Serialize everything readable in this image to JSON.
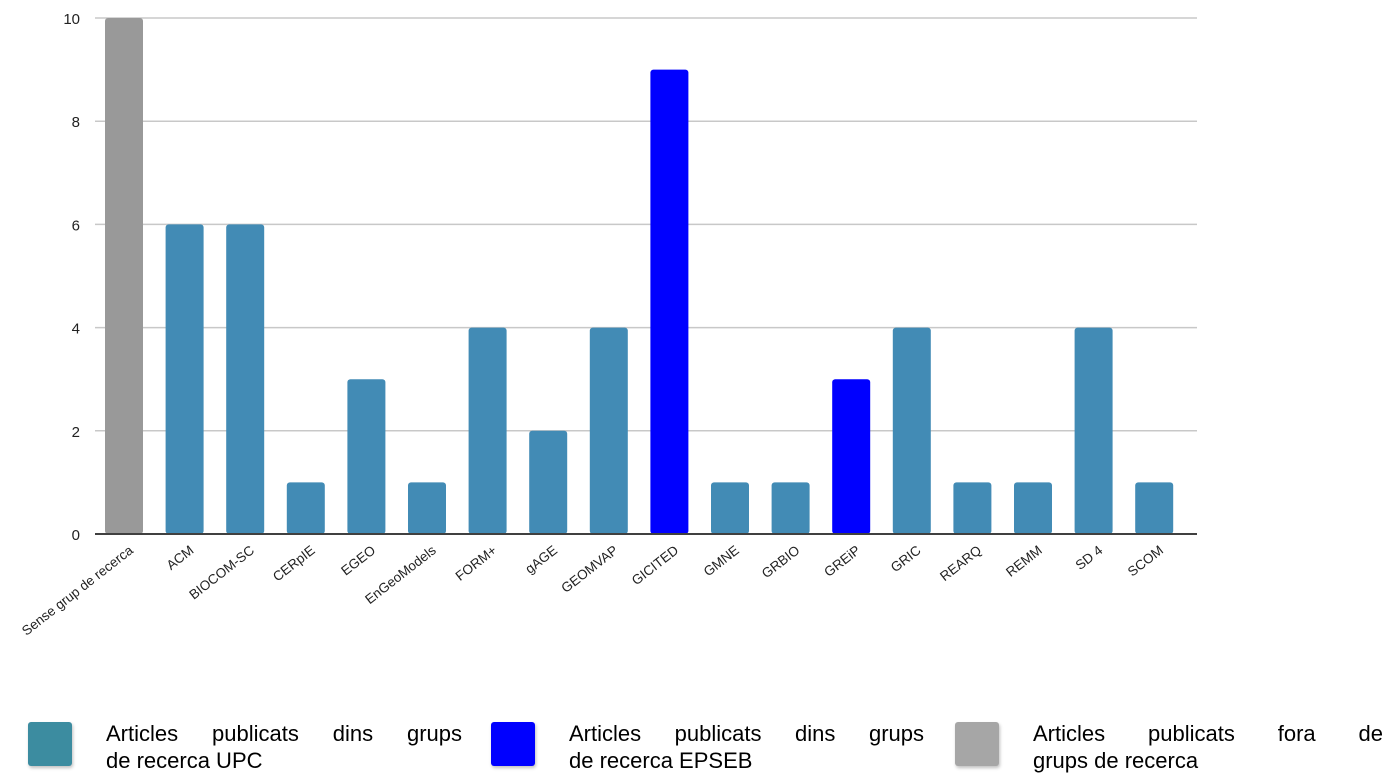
{
  "chart_data": {
    "type": "bar",
    "categories": [
      "Sense grup de recerca",
      "ACM",
      "BIOCOM-SC",
      "CERpIE",
      "EGEO",
      "EnGeoModels",
      "FORM+",
      "gAGE",
      "GEOMVAP",
      "GICITED",
      "GMNE",
      "GRBIO",
      "GREiP",
      "GRIC",
      "REARQ",
      "REMM",
      "SD 4",
      "SCOM"
    ],
    "values": [
      10,
      6,
      6,
      1,
      3,
      1,
      4,
      2,
      4,
      9,
      1,
      1,
      3,
      4,
      1,
      1,
      4,
      1
    ],
    "bar_groups": [
      "none",
      "upc",
      "upc",
      "upc",
      "upc",
      "upc",
      "upc",
      "upc",
      "upc",
      "epseb",
      "upc",
      "upc",
      "epseb",
      "upc",
      "upc",
      "upc",
      "upc",
      "upc"
    ],
    "ylim": [
      0,
      10
    ],
    "yticks": [
      "0",
      "2",
      "4",
      "6",
      "8",
      "10"
    ],
    "grid": true,
    "legend_placement": "bottom",
    "colors": {
      "upc": "#428bb5",
      "epseb": "#0000ff",
      "none": "#999999",
      "grid": "#c8c8c8",
      "axis": "#404040"
    }
  },
  "legend": [
    {
      "key": "upc",
      "line1": "Articles publicats dins grups",
      "line2": "de recerca UPC",
      "color": "#3c8ca0"
    },
    {
      "key": "epseb",
      "line1": "Articles publicats dins grups",
      "line2": "de recerca EPSEB",
      "color": "#0000ff"
    },
    {
      "key": "none",
      "line1": "Articles publicats fora de",
      "line2": "grups de recerca",
      "color": "#a6a6a6"
    }
  ]
}
